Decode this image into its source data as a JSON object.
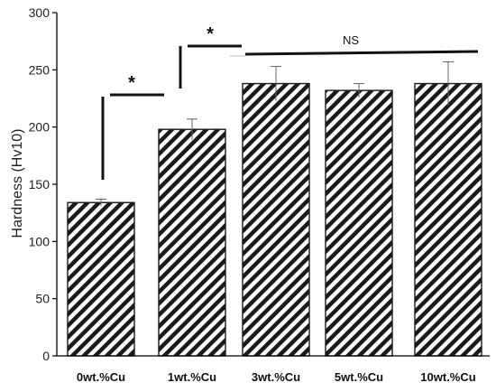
{
  "chart_data": {
    "type": "bar",
    "categories": [
      "0wt.%Cu",
      "1wt.%Cu",
      "3wt.%Cu",
      "5wt.%Cu",
      "10wt.%Cu"
    ],
    "values": [
      134,
      198,
      238,
      232,
      238
    ],
    "errors": [
      3,
      9,
      15,
      6,
      19
    ],
    "ylabel": "Hardness (Hv10)",
    "xlabel": "",
    "ylim": [
      0,
      300
    ],
    "yticks": [
      0,
      50,
      100,
      150,
      200,
      250,
      300
    ],
    "bar_fill": "diagonal-hatch",
    "colors": {
      "hatch": "#1a1a1a",
      "background": "#ffffff",
      "axis": "#000000"
    },
    "grid": false,
    "annotations": [
      {
        "text": "*",
        "between": [
          "0wt.%Cu",
          "1wt.%Cu"
        ]
      },
      {
        "text": "*",
        "between": [
          "1wt.%Cu",
          "3wt.%Cu"
        ]
      },
      {
        "text": "NS",
        "between": [
          "3wt.%Cu",
          "10wt.%Cu"
        ]
      }
    ]
  }
}
